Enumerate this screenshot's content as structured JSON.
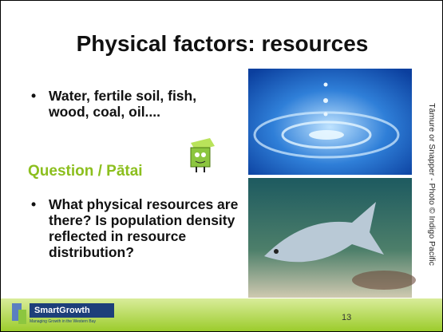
{
  "slide": {
    "title": "Physical factors: resources",
    "bullets": [
      "Water, fertile soil, fish, wood, coal, oil...."
    ],
    "question_heading": "Question / Pātai",
    "question_bullets": [
      "What physical resources are there? Is population density reflected in resource distribution?"
    ],
    "photo_caption": "Tāmure or Snapper - Photo © Indigo Pacific",
    "footer": {
      "logo": "SmartGrowth",
      "tagline": "Managing Growth in the Western Bay",
      "page_number": "13"
    }
  }
}
